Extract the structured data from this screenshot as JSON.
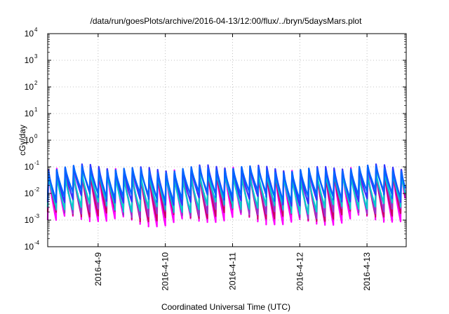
{
  "chart_data": {
    "type": "line",
    "title": "/data/run/goesPlots/archive/2016-04-13/12:00/flux/../bryn/5daysMars.plot",
    "xlabel": "Coordinated Universal Time (UTC)",
    "ylabel": "cGy/day",
    "y_scale": "log",
    "ylim": [
      0.0001,
      10000
    ],
    "y_ticks": [
      {
        "base": "10",
        "exp": "4",
        "value": 10000
      },
      {
        "base": "10",
        "exp": "3",
        "value": 1000
      },
      {
        "base": "10",
        "exp": "2",
        "value": 100
      },
      {
        "base": "10",
        "exp": "1",
        "value": 10
      },
      {
        "base": "10",
        "exp": "0",
        "value": 1
      },
      {
        "base": "10",
        "exp": "-1",
        "value": 0.1
      },
      {
        "base": "10",
        "exp": "-2",
        "value": 0.01
      },
      {
        "base": "10",
        "exp": "-3",
        "value": 0.001
      },
      {
        "base": "10",
        "exp": "-4",
        "value": 0.0001
      }
    ],
    "xlim": [
      "2016-04-08T06:00",
      "2016-04-13T14:00"
    ],
    "x_ticks": [
      {
        "label": "2016-4-9",
        "value": "2016-04-09"
      },
      {
        "label": "2016-4-10",
        "value": "2016-04-10"
      },
      {
        "label": "2016-4-11",
        "value": "2016-04-11"
      },
      {
        "label": "2016-4-12",
        "value": "2016-04-12"
      },
      {
        "label": "2016-4-13",
        "value": "2016-04-13"
      }
    ],
    "grid": true,
    "legend": "none",
    "series": [
      {
        "color": "#ff00ff",
        "peak": 0.07,
        "trough": 0.001
      },
      {
        "color": "#cc0066",
        "peak": 0.06,
        "trough": 0.0015
      },
      {
        "color": "#9933cc",
        "peak": 0.065,
        "trough": 0.002
      },
      {
        "color": "#00cccc",
        "peak": 0.05,
        "trough": 0.003
      },
      {
        "color": "#3333ff",
        "peak": 0.09,
        "trough": 0.006
      },
      {
        "color": "#0066ff",
        "peak": 0.08,
        "trough": 0.008
      }
    ],
    "cycle_hours": 3
  }
}
